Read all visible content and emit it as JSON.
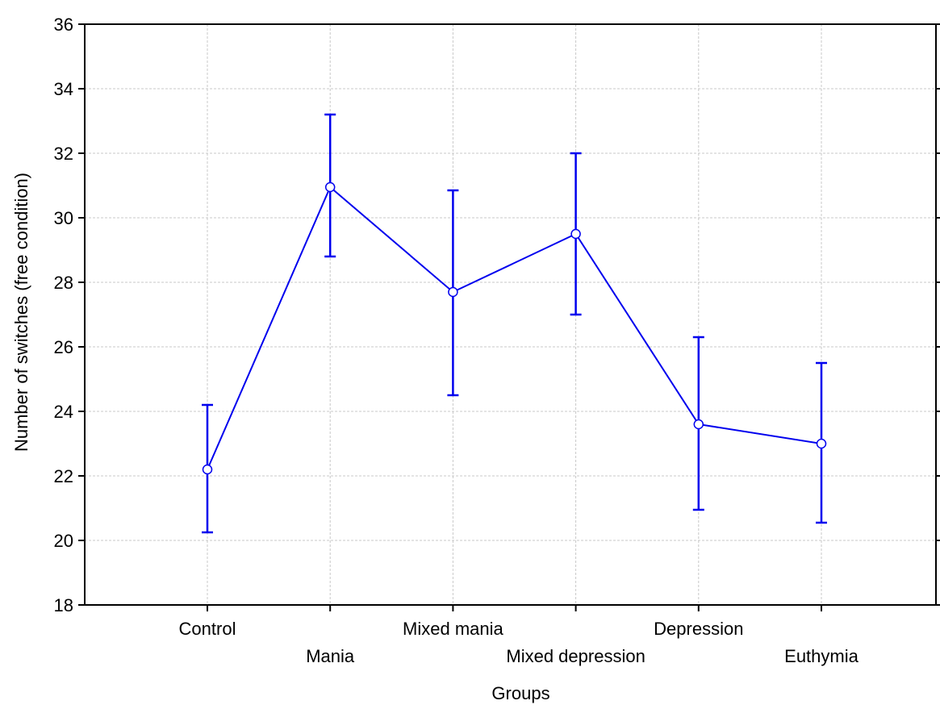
{
  "chart_data": {
    "type": "line",
    "xlabel": "Groups",
    "ylabel": "Number of switches (free condition)",
    "categories": [
      "Control",
      "Mania",
      "Mixed mania",
      "Mixed depression",
      "Depression",
      "Euthymia"
    ],
    "series": [
      {
        "values": [
          22.2,
          30.95,
          27.7,
          29.5,
          23.6,
          23.0
        ],
        "error_low": [
          20.25,
          28.8,
          24.5,
          27.0,
          20.95,
          20.55
        ],
        "error_high": [
          24.2,
          33.2,
          30.85,
          32.0,
          26.3,
          25.5
        ],
        "color": "#0000ee"
      }
    ],
    "ylim": [
      18,
      36
    ],
    "yticks": [
      "18",
      "20",
      "22",
      "24",
      "26",
      "28",
      "30",
      "32",
      "34",
      "36"
    ],
    "grid": true,
    "grid_color": "#c8c8c8",
    "legend": false
  }
}
